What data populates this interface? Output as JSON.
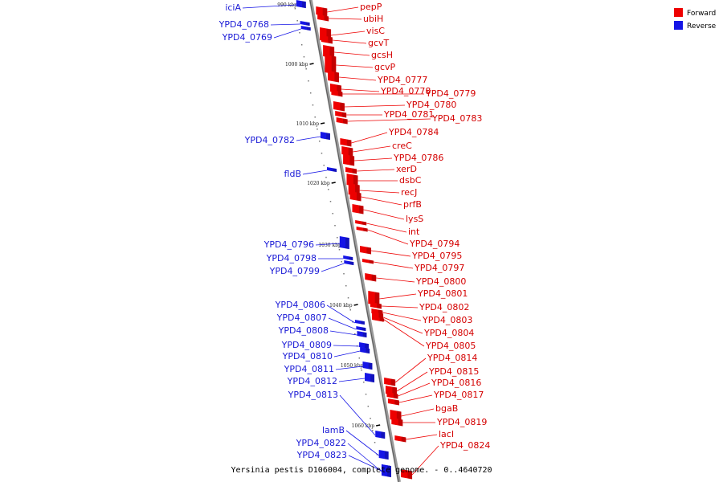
{
  "caption": "Yersinia pestis D106004, complete genome. - 0..4640720",
  "legend": [
    {
      "label": "Forward",
      "color": "#ee0000"
    },
    {
      "label": "Reverse",
      "color": "#1515e6"
    }
  ],
  "colors": {
    "forward": "#ee0000",
    "reverse": "#1515e6",
    "axis": "#888888"
  },
  "kbp_ticks": [
    "990 kbp",
    "1000 kbp",
    "1010 kbp",
    "1020 kbp",
    "1030 kbp",
    "1040 kbp",
    "1050 kbp",
    "1060 kbp"
  ],
  "forward_genes": [
    "pepP",
    "ubiH",
    "visC",
    "gcvT",
    "gcsH",
    "gcvP",
    "YPD4_0777",
    "YPD4_0778",
    "YPD4_0779",
    "YPD4_0780",
    "YPD4_0781",
    "YPD4_0783",
    "YPD4_0784",
    "creC",
    "YPD4_0786",
    "xerD",
    "dsbC",
    "recJ",
    "prfB",
    "lysS",
    "int",
    "YPD4_0794",
    "YPD4_0795",
    "YPD4_0797",
    "YPD4_0800",
    "YPD4_0801",
    "YPD4_0802",
    "YPD4_0803",
    "YPD4_0804",
    "YPD4_0805",
    "YPD4_0814",
    "YPD4_0815",
    "YPD4_0816",
    "YPD4_0817",
    "bgaB",
    "YPD4_0819",
    "lacI",
    "YPD4_0824"
  ],
  "reverse_genes": [
    "iciA",
    "YPD4_0768",
    "YPD4_0769",
    "YPD4_0782",
    "fldB",
    "YPD4_0796",
    "YPD4_0798",
    "YPD4_0799",
    "YPD4_0806",
    "YPD4_0807",
    "YPD4_0808",
    "YPD4_0809",
    "YPD4_0810",
    "YPD4_0811",
    "YPD4_0812",
    "YPD4_0813",
    "lamB",
    "YPD4_0822",
    "YPD4_0823"
  ]
}
